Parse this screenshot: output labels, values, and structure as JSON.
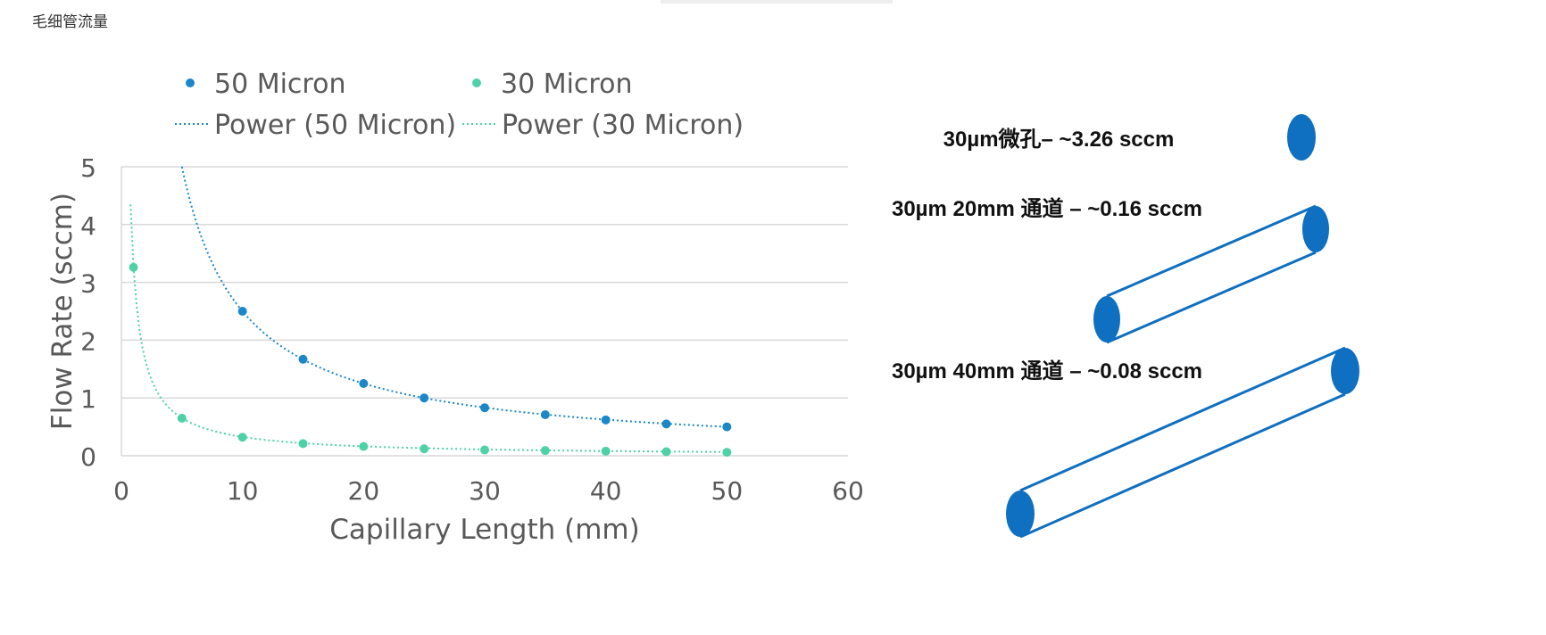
{
  "page": {
    "title": "毛细管流量"
  },
  "colors": {
    "series_50": "#1b87c7",
    "series_30": "#4fd1a8",
    "diagram_blue": "#0f6fc0",
    "grid": "#d9d9d9",
    "text": "#595959"
  },
  "chart_data": {
    "type": "scatter",
    "title": "",
    "xlabel": "Capillary Length (mm)",
    "ylabel": "Flow Rate (sccm)",
    "xlim": [
      0,
      60
    ],
    "ylim": [
      0,
      5
    ],
    "x_ticks": [
      "0",
      "10",
      "20",
      "30",
      "40",
      "50",
      "60"
    ],
    "y_ticks": [
      "0",
      "1",
      "2",
      "3",
      "4",
      "5"
    ],
    "grid": "horizontal",
    "legend_position": "top",
    "series": [
      {
        "name": "50 Micron",
        "color": "#1b87c7",
        "x": [
          10,
          15,
          20,
          25,
          30,
          35,
          40,
          45,
          50
        ],
        "y": [
          2.5,
          1.67,
          1.25,
          1.0,
          0.83,
          0.71,
          0.62,
          0.55,
          0.5
        ]
      },
      {
        "name": "30 Micron",
        "color": "#4fd1a8",
        "x": [
          1,
          5,
          10,
          15,
          20,
          25,
          30,
          35,
          40,
          45,
          50
        ],
        "y": [
          3.26,
          0.65,
          0.32,
          0.21,
          0.16,
          0.12,
          0.1,
          0.09,
          0.08,
          0.07,
          0.06
        ]
      }
    ],
    "trendlines": [
      {
        "name": "Power (50 Micron)",
        "color": "#1b87c7",
        "style": "dotted",
        "coefficient": 25,
        "exponent": -1
      },
      {
        "name": "Power (30 Micron)",
        "color": "#4fd1a8",
        "style": "dotted",
        "coefficient": 3.26,
        "exponent": -1
      }
    ]
  },
  "diagram": {
    "orifice_label": "30µm微孔– ~3.26 sccm",
    "channel_20_label": "30µm 20mm 通道  – ~0.16 sccm",
    "channel_40_label": "30µm 40mm 通道  – ~0.08 sccm"
  }
}
